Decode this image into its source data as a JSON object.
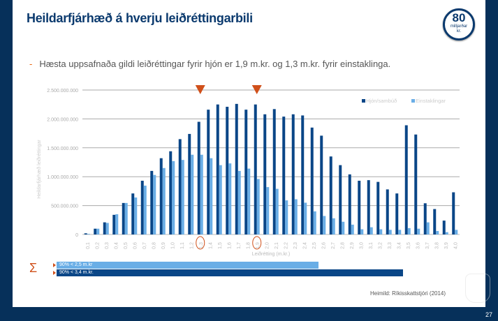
{
  "header": {
    "title": "Heildarfjárhæð á hverju leiðréttingarbili",
    "badge_number": "80",
    "badge_line1": "milljarðar",
    "badge_line2": "kr."
  },
  "bullet": "Hæsta uppsafnaða gildi leiðréttingar fyrir hjón er 1,9 m.kr. og 1,3 m.kr. fyrir einstaklinga.",
  "chart_data": {
    "type": "bar",
    "xlabel": "Leiðrétting (m.kr.)",
    "ylabel": "Heildarfjárhæð leiðréttingar",
    "ylim": [
      0,
      2500000000
    ],
    "yticks": [
      "0",
      "500.000.000",
      "1.000.000.000",
      "1.500.000.000",
      "2.000.000.000",
      "2.500.000.000"
    ],
    "grid": true,
    "legend": "top-right",
    "categories": [
      "0,1",
      "0,2",
      "0,3",
      "0,4",
      "0,5",
      "0,6",
      "0,7",
      "0,8",
      "0,9",
      "1,0",
      "1,1",
      "1,2",
      "1,3",
      "1,4",
      "1,5",
      "1,6",
      "1,7",
      "1,8",
      "1,9",
      "2,0",
      "2,1",
      "2,2",
      "2,3",
      "2,4",
      "2,5",
      "2,6",
      "2,7",
      "2,8",
      "2,9",
      "3,0",
      "3,1",
      "3,2",
      "3,3",
      "3,4",
      "3,5",
      "3,6",
      "3,7",
      "3,8",
      "3,9",
      "4,0"
    ],
    "series": [
      {
        "name": "Hjón/sambúð",
        "color": "#0a4687",
        "values": [
          0.02,
          0.1,
          0.21,
          0.34,
          0.545,
          0.71,
          0.93,
          1.1,
          1.32,
          1.44,
          1.65,
          1.74,
          1.95,
          2.16,
          2.25,
          2.21,
          2.26,
          2.16,
          2.25,
          2.08,
          2.17,
          2.04,
          2.08,
          2.06,
          1.85,
          1.71,
          1.35,
          1.2,
          1.04,
          0.93,
          0.94,
          0.91,
          0.78,
          0.71,
          1.89,
          1.73,
          0.54,
          0.44,
          0.24,
          0.73
        ]
      },
      {
        "name": "Einstaklingar",
        "color": "#6aaee6",
        "values": [
          0.01,
          0.1,
          0.2,
          0.35,
          0.545,
          0.64,
          0.845,
          1.03,
          1.15,
          1.27,
          1.29,
          1.38,
          1.38,
          1.32,
          1.2,
          1.23,
          1.1,
          1.14,
          0.96,
          0.82,
          0.79,
          0.59,
          0.61,
          0.55,
          0.4,
          0.32,
          0.28,
          0.22,
          0.17,
          0.09,
          0.125,
          0.09,
          0.08,
          0.08,
          0.11,
          0.1,
          0.21,
          0.06,
          0.04,
          0.08
        ]
      }
    ],
    "value_unit_multiplier": 1000000000,
    "highlighted_categories": [
      "1,3",
      "1,9"
    ],
    "annotation_color": "#d0501a"
  },
  "summary": {
    "symbol": "Σ",
    "single": {
      "label": "90% < 2,5 m.kr",
      "value_mkr": 2.5
    },
    "couples": {
      "label": "90%  < 3,4 m.kr.",
      "value_mkr": 3.4
    }
  },
  "source": "Heimild: Ríkisskattstjóri (2014)",
  "page_number": "27"
}
